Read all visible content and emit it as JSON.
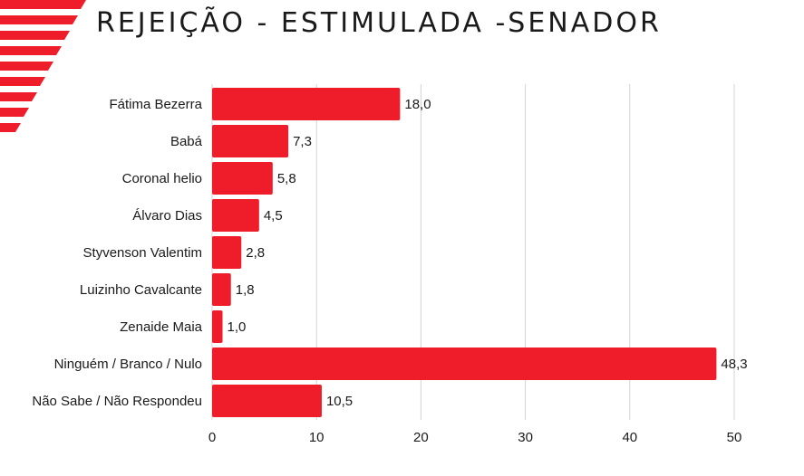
{
  "title": "REJEIÇÃO - ESTIMULADA -SENADOR",
  "colors": {
    "bar": "#ef1c2a",
    "grid": "#d4d4d4",
    "deco": "#ef1c2a"
  },
  "chart_data": {
    "type": "bar",
    "orientation": "horizontal",
    "title": "REJEIÇÃO - ESTIMULADA -SENADOR",
    "categories": [
      "Fátima Bezerra",
      "Babá",
      "Coronal helio",
      "Álvaro Dias",
      "Styvenson Valentim",
      "Luizinho Cavalcante",
      "Zenaide Maia",
      "Ninguém / Branco / Nulo",
      "Não Sabe / Não Respondeu"
    ],
    "values": [
      18.0,
      7.3,
      5.8,
      4.5,
      2.8,
      1.8,
      1.0,
      48.3,
      10.5
    ],
    "value_labels": [
      "18,0",
      "7,3",
      "5,8",
      "4,5",
      "2,8",
      "1,8",
      "1,0",
      "48,3",
      "10,5"
    ],
    "xlim": [
      0,
      50
    ],
    "xticks": [
      "0",
      "10",
      "20",
      "30",
      "40",
      "50"
    ],
    "grid": true
  }
}
